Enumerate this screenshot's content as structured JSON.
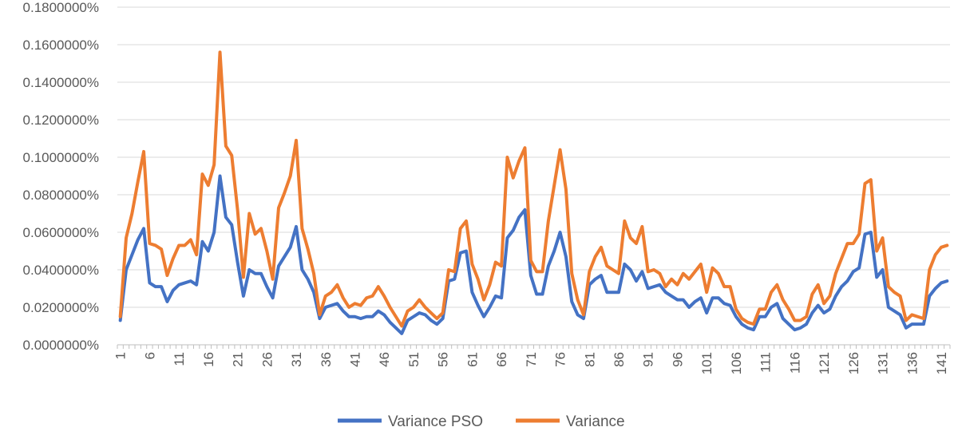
{
  "chart_data": {
    "type": "line",
    "title": "",
    "xlabel": "",
    "ylabel": "",
    "ylim": [
      0,
      0.0018
    ],
    "yticks": [
      "0.0000000%",
      "0.0200000%",
      "0.0400000%",
      "0.0600000%",
      "0.0800000%",
      "0.1000000%",
      "0.1200000%",
      "0.1400000%",
      "0.1600000%",
      "0.1800000%"
    ],
    "x_tick_labels": [
      "1",
      "6",
      "11",
      "16",
      "21",
      "26",
      "31",
      "36",
      "41",
      "46",
      "51",
      "56",
      "61",
      "66",
      "71",
      "76",
      "81",
      "86",
      "91",
      "96",
      "101",
      "106",
      "111",
      "116",
      "121",
      "126",
      "131",
      "136",
      "141"
    ],
    "grid": true,
    "legend_position": "bottom",
    "series": [
      {
        "name": "Variance PSO",
        "color": "#4472C4",
        "values": [
          0.00013,
          0.0004,
          0.00048,
          0.00056,
          0.00062,
          0.00033,
          0.00031,
          0.00031,
          0.00023,
          0.00029,
          0.00032,
          0.00033,
          0.00034,
          0.00032,
          0.00055,
          0.0005,
          0.0006,
          0.0009,
          0.00068,
          0.00064,
          0.00044,
          0.00026,
          0.0004,
          0.00038,
          0.00038,
          0.00031,
          0.00025,
          0.00042,
          0.00047,
          0.00052,
          0.00063,
          0.0004,
          0.00035,
          0.00028,
          0.00014,
          0.0002,
          0.00021,
          0.00022,
          0.00018,
          0.00015,
          0.00015,
          0.00014,
          0.00015,
          0.00015,
          0.00018,
          0.00016,
          0.00012,
          9e-05,
          6e-05,
          0.00013,
          0.00015,
          0.00017,
          0.00016,
          0.00013,
          0.00011,
          0.00014,
          0.00034,
          0.00035,
          0.00049,
          0.0005,
          0.00028,
          0.00021,
          0.00015,
          0.0002,
          0.00026,
          0.00025,
          0.00057,
          0.00061,
          0.00068,
          0.00072,
          0.00037,
          0.00027,
          0.00027,
          0.00042,
          0.0005,
          0.0006,
          0.00047,
          0.00023,
          0.00016,
          0.00014,
          0.00032,
          0.00035,
          0.00037,
          0.00028,
          0.00028,
          0.00028,
          0.00043,
          0.0004,
          0.00034,
          0.00039,
          0.0003,
          0.00031,
          0.00032,
          0.00028,
          0.00026,
          0.00024,
          0.00024,
          0.0002,
          0.00023,
          0.00025,
          0.00017,
          0.00025,
          0.00025,
          0.00022,
          0.00021,
          0.00015,
          0.00011,
          9e-05,
          8e-05,
          0.00015,
          0.00015,
          0.0002,
          0.00022,
          0.00014,
          0.00011,
          8e-05,
          9e-05,
          0.00011,
          0.00017,
          0.00021,
          0.00017,
          0.00019,
          0.00026,
          0.00031,
          0.00034,
          0.00039,
          0.00041,
          0.00059,
          0.0006,
          0.00036,
          0.0004,
          0.0002,
          0.00018,
          0.00016,
          9e-05,
          0.00011,
          0.00011,
          0.00011,
          0.00026,
          0.0003,
          0.00033,
          0.00034
        ]
      },
      {
        "name": "Variance",
        "color": "#ED7D31",
        "values": [
          0.00015,
          0.00057,
          0.0007,
          0.00087,
          0.00103,
          0.00054,
          0.00053,
          0.00051,
          0.00037,
          0.00046,
          0.00053,
          0.00053,
          0.00056,
          0.00048,
          0.00091,
          0.00085,
          0.00096,
          0.00156,
          0.00106,
          0.00101,
          0.00072,
          0.00036,
          0.0007,
          0.00059,
          0.00062,
          0.0005,
          0.00035,
          0.00073,
          0.00081,
          0.0009,
          0.00109,
          0.00062,
          0.00051,
          0.00038,
          0.00016,
          0.00026,
          0.00028,
          0.00032,
          0.00025,
          0.0002,
          0.00022,
          0.00021,
          0.00025,
          0.00026,
          0.00031,
          0.00026,
          0.0002,
          0.00015,
          0.0001,
          0.00018,
          0.0002,
          0.00024,
          0.0002,
          0.00017,
          0.00014,
          0.00017,
          0.0004,
          0.00039,
          0.00062,
          0.00066,
          0.00043,
          0.00035,
          0.00024,
          0.00032,
          0.00044,
          0.00042,
          0.001,
          0.00089,
          0.00098,
          0.00105,
          0.00045,
          0.00039,
          0.00039,
          0.00066,
          0.00085,
          0.00104,
          0.00083,
          0.00038,
          0.00024,
          0.00016,
          0.00039,
          0.00047,
          0.00052,
          0.00042,
          0.0004,
          0.00038,
          0.00066,
          0.00057,
          0.00054,
          0.00063,
          0.00039,
          0.0004,
          0.00038,
          0.00031,
          0.00035,
          0.00032,
          0.00038,
          0.00035,
          0.00039,
          0.00043,
          0.00028,
          0.00041,
          0.00038,
          0.00031,
          0.00031,
          0.00019,
          0.00014,
          0.00012,
          0.00011,
          0.00019,
          0.00019,
          0.00028,
          0.00032,
          0.00024,
          0.00019,
          0.00013,
          0.00013,
          0.00015,
          0.00027,
          0.00032,
          0.00022,
          0.00026,
          0.00038,
          0.00046,
          0.00054,
          0.00054,
          0.00059,
          0.00086,
          0.00088,
          0.0005,
          0.00057,
          0.00031,
          0.00028,
          0.00026,
          0.00013,
          0.00016,
          0.00015,
          0.00014,
          0.0004,
          0.00048,
          0.00052,
          0.00053
        ]
      }
    ]
  }
}
